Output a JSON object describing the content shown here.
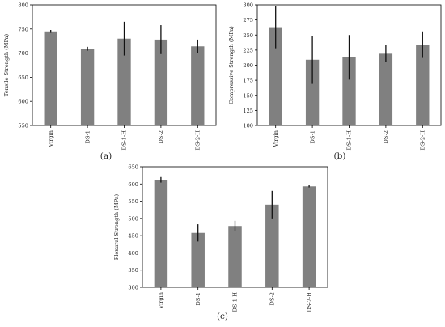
{
  "colors": {
    "bar": "#808080",
    "error_bar": "#111111",
    "axis": "#000000",
    "background": "#ffffff"
  },
  "chart_data": [
    {
      "panel_label": "(a)",
      "type": "bar",
      "categories": [
        "Virgin",
        "DS-1",
        "DS-1-H",
        "DS-2",
        "DS-2-H"
      ],
      "values": [
        745,
        709,
        730,
        728,
        714
      ],
      "errors": [
        3,
        4,
        35,
        30,
        14
      ],
      "ylabel": "Tensile Strength (MPa)",
      "ylim": [
        550,
        800
      ],
      "yticks": [
        550,
        600,
        650,
        700,
        750,
        800
      ],
      "grid": false
    },
    {
      "panel_label": "(b)",
      "type": "bar",
      "categories": [
        "Virgin",
        "DS-1",
        "DS-1-H",
        "DS-2",
        "DS-2-H"
      ],
      "values": [
        263,
        209,
        213,
        219,
        234
      ],
      "errors": [
        35,
        40,
        37,
        14,
        22
      ],
      "ylabel": "Compressive Strength (MPa)",
      "ylim": [
        100,
        300
      ],
      "yticks": [
        100,
        125,
        150,
        175,
        200,
        225,
        250,
        275,
        300
      ],
      "grid": false
    },
    {
      "panel_label": "(c)",
      "type": "bar",
      "categories": [
        "Virgin",
        "DS-1",
        "DS-1-H",
        "DS-2",
        "DS-2-H"
      ],
      "values": [
        612,
        458,
        478,
        540,
        593
      ],
      "errors": [
        8,
        25,
        15,
        40,
        3
      ],
      "ylabel": "Flexural Strength (MPa)",
      "ylim": [
        300,
        650
      ],
      "yticks": [
        300,
        350,
        400,
        450,
        500,
        550,
        600,
        650
      ],
      "grid": false
    }
  ]
}
